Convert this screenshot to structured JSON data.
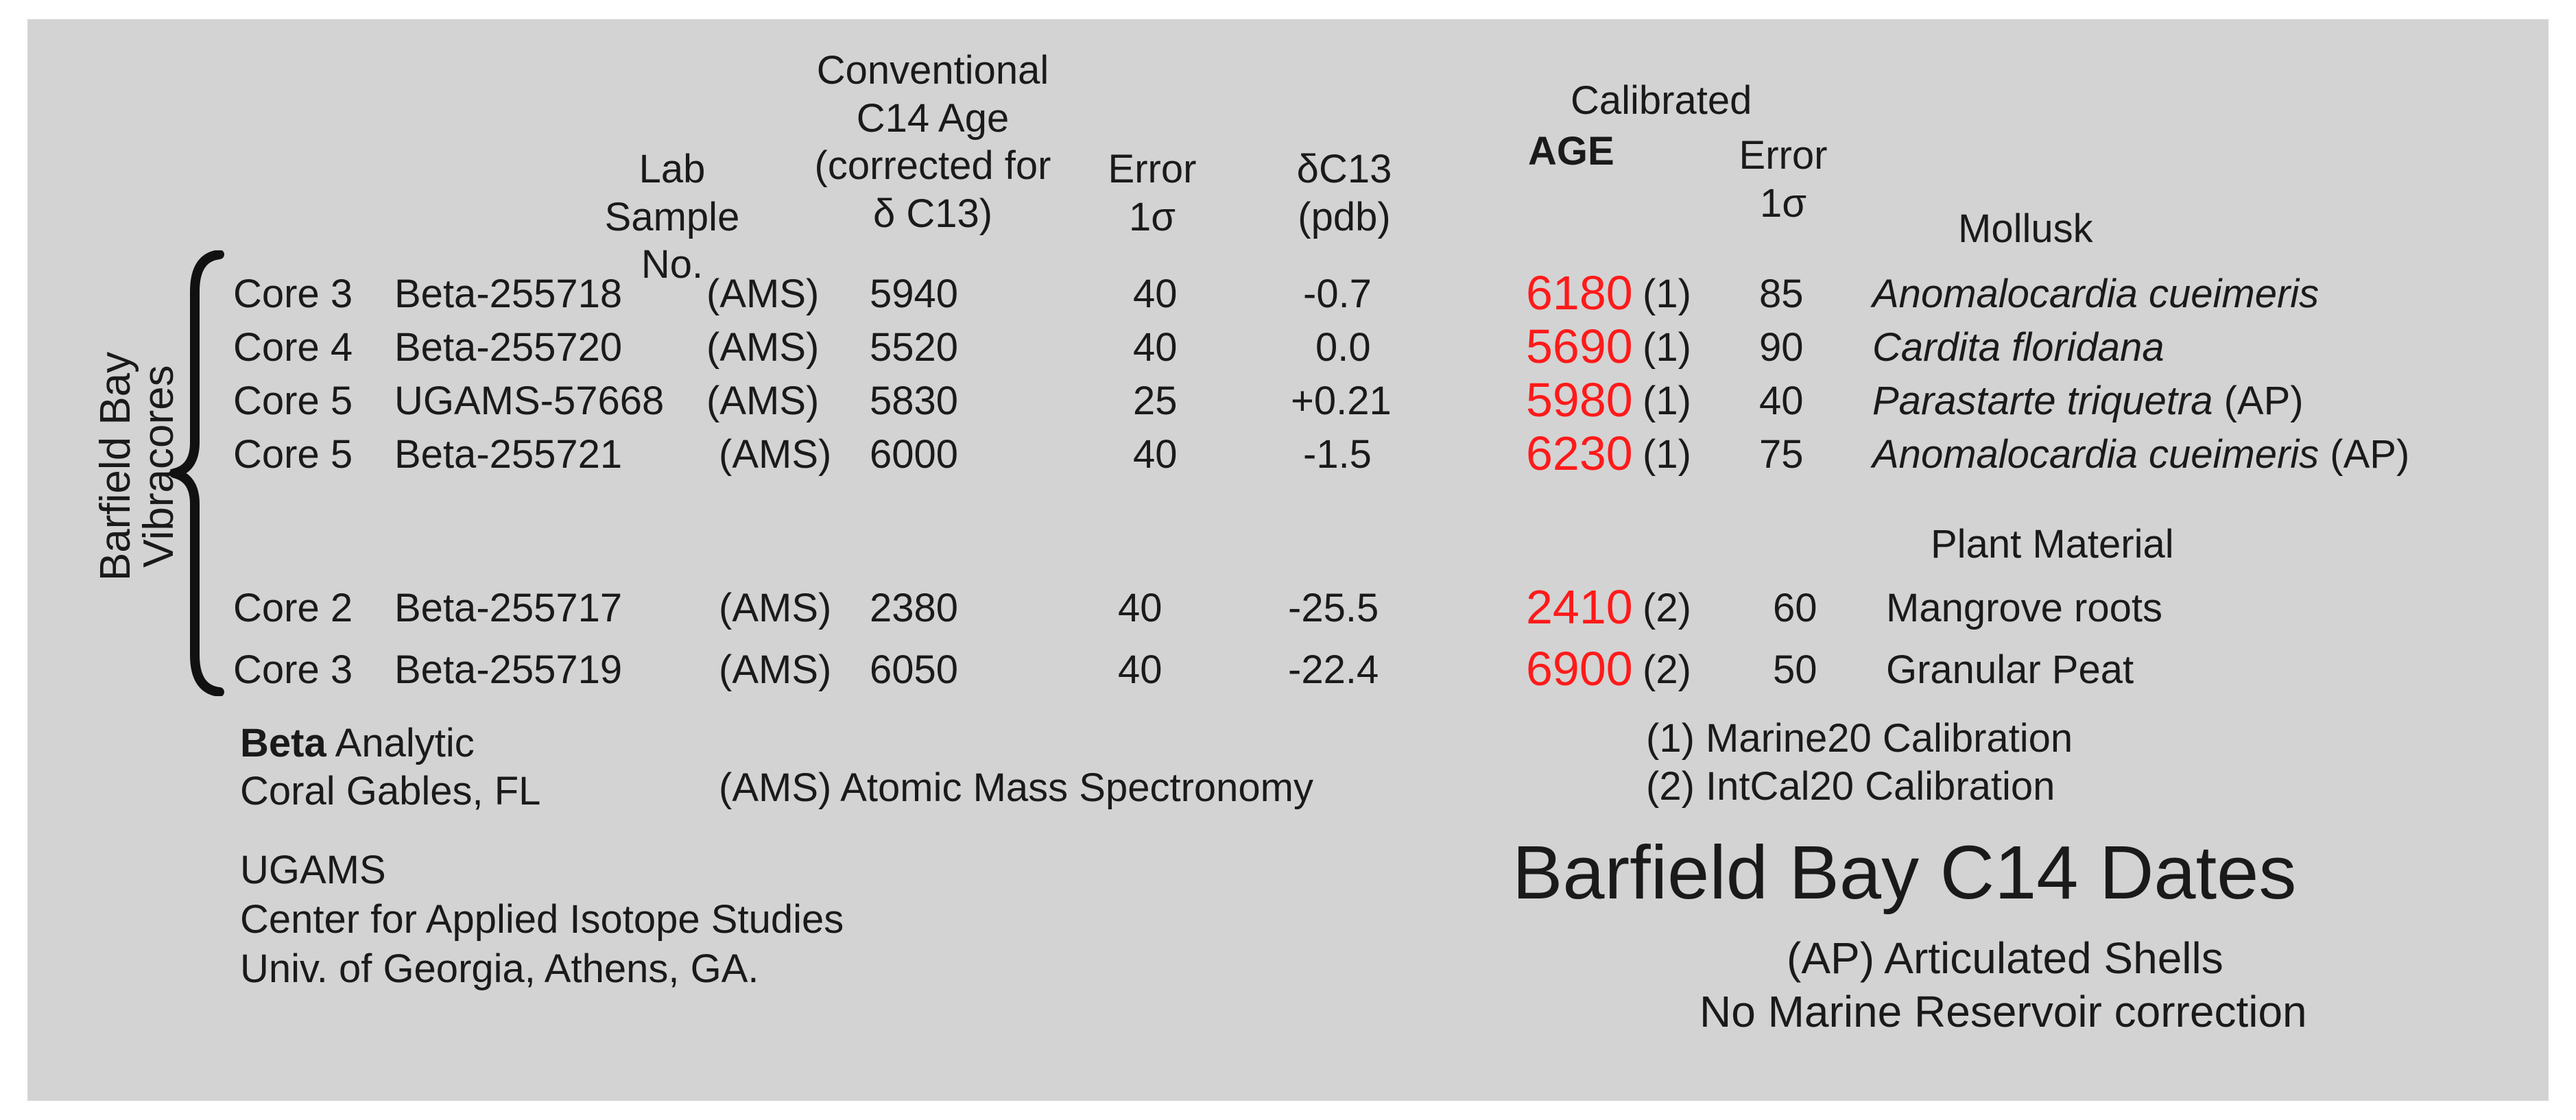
{
  "headers": {
    "lab_sample": [
      "Lab",
      "Sample No."
    ],
    "conventional_age": [
      "Conventional",
      "C14 Age",
      "(corrected for",
      "δ C13)"
    ],
    "error": [
      "Error",
      "1σ"
    ],
    "delta_c13": [
      "δC13",
      "(pdb)"
    ],
    "calibrated": "Calibrated",
    "age": "AGE",
    "cal_error": [
      "Error",
      "1σ"
    ]
  },
  "side_label": [
    "Barfield Bay",
    "Vibracores"
  ],
  "section_mollusk": "Mollusk",
  "section_plant": "Plant Material",
  "rows": [
    {
      "core": "Core 3",
      "sample": "Beta-255718",
      "method": "(AMS)",
      "age": "5940",
      "error": "40",
      "d13c": "-0.7",
      "cal_age": "6180",
      "cal_ref": "(1)",
      "cal_error": "85",
      "material": "Anomalocardia cueimeris",
      "material_note": ""
    },
    {
      "core": "Core 4",
      "sample": "Beta-255720",
      "method": "(AMS)",
      "age": "5520",
      "error": "40",
      "d13c": "0.0",
      "cal_age": "5690",
      "cal_ref": "(1)",
      "cal_error": "90",
      "material": "Cardita floridana",
      "material_note": ""
    },
    {
      "core": "Core 5",
      "sample": "UGAMS-57668",
      "method": "(AMS)",
      "age": "5830",
      "error": "25",
      "d13c": "+0.21",
      "cal_age": "5980",
      "cal_ref": "(1)",
      "cal_error": "40",
      "material": "Parastarte triquetra",
      "material_note": "(AP)"
    },
    {
      "core": "Core 5",
      "sample": "Beta-255721",
      "method": "(AMS)",
      "age": "6000",
      "error": "40",
      "d13c": "-1.5",
      "cal_age": "6230",
      "cal_ref": "(1)",
      "cal_error": "75",
      "material": "Anomalocardia cueimeris",
      "material_note": "(AP)"
    },
    {
      "core": "Core 2",
      "sample": "Beta-255717",
      "method": "(AMS)",
      "age": "2380",
      "error": "40",
      "d13c": "-25.5",
      "cal_age": "2410",
      "cal_ref": "(2)",
      "cal_error": "60",
      "material": "Mangrove roots",
      "material_note": ""
    },
    {
      "core": "Core 3",
      "sample": "Beta-255719",
      "method": "(AMS)",
      "age": "6050",
      "error": "40",
      "d13c": "-22.4",
      "cal_age": "6900",
      "cal_ref": "(2)",
      "cal_error": "50",
      "material": "Granular Peat",
      "material_note": ""
    }
  ],
  "footer": {
    "beta_bold": "Beta",
    "beta_rest": " Analytic",
    "beta_location": "Coral Gables, FL",
    "ams_note": "(AMS) Atomic Mass Spectronomy",
    "ugams": [
      "UGAMS",
      "Center for Applied Isotope Studies",
      "Univ. of Georgia, Athens, GA."
    ],
    "calibration_notes": [
      "(1) Marine20 Calibration",
      "(2) IntCal20 Calibration"
    ],
    "title": "Barfield Bay C14 Dates",
    "ap_note": "(AP)  Articulated Shells",
    "reservoir_note": "No Marine Reservoir correction"
  }
}
